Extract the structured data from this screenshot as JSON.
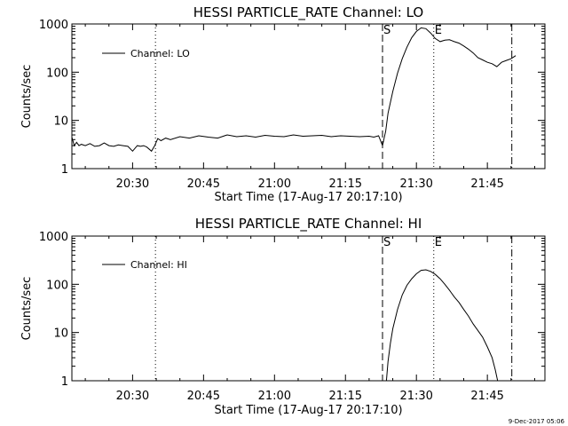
{
  "footer": "9-Dec-2017 05:06",
  "chart_data": [
    {
      "type": "line",
      "title": "HESSI PARTICLE_RATE Channel: LO",
      "xlabel": "Start Time (17-Aug-17 20:17:10)",
      "ylabel": "Counts/sec",
      "yscale": "log",
      "xlim": [
        "20:17:10",
        "21:57:10"
      ],
      "ylim": [
        1,
        1000
      ],
      "xticks": [
        "20:30",
        "20:45",
        "21:00",
        "21:15",
        "21:30",
        "21:45"
      ],
      "yticks": [
        "1",
        "10",
        "100",
        "1000"
      ],
      "legend": {
        "label": "Channel: LO",
        "position": "top-left"
      },
      "markers": [
        {
          "label": "",
          "time": "20:34:50",
          "style": "dotted"
        },
        {
          "label": "S",
          "time": "21:22:50",
          "style": "dashed"
        },
        {
          "label": "E",
          "time": "21:33:40",
          "style": "dotted"
        },
        {
          "label": "",
          "time": "21:50:10",
          "style": "dashdot"
        }
      ],
      "series": [
        {
          "name": "Channel: LO",
          "x": [
            "20:17:10",
            "20:17:40",
            "20:18:10",
            "20:18:40",
            "20:19:10",
            "20:20:00",
            "20:21:00",
            "20:22:00",
            "20:23:00",
            "20:24:00",
            "20:25:00",
            "20:26:00",
            "20:27:00",
            "20:28:00",
            "20:29:00",
            "20:30:00",
            "20:31:00",
            "20:31:40",
            "20:32:20",
            "20:33:00",
            "20:34:00",
            "20:34:40",
            "20:35:20",
            "20:36:00",
            "20:37:00",
            "20:38:00",
            "20:40:00",
            "20:42:00",
            "20:44:00",
            "20:46:00",
            "20:48:00",
            "20:50:00",
            "20:52:00",
            "20:54:00",
            "20:56:00",
            "20:58:00",
            "21:00:00",
            "21:02:00",
            "21:04:00",
            "21:06:00",
            "21:08:00",
            "21:10:00",
            "21:12:00",
            "21:14:00",
            "21:16:00",
            "21:18:00",
            "21:20:00",
            "21:21:00",
            "21:22:00",
            "21:22:50",
            "21:23:30",
            "21:24:00",
            "21:25:00",
            "21:26:00",
            "21:27:00",
            "21:28:00",
            "21:29:00",
            "21:30:00",
            "21:31:00",
            "21:32:00",
            "21:33:00",
            "21:34:00",
            "21:35:00",
            "21:36:00",
            "21:37:00",
            "21:38:00",
            "21:39:00",
            "21:40:00",
            "21:41:00",
            "21:42:00",
            "21:43:00",
            "21:44:00",
            "21:45:00",
            "21:46:00",
            "21:47:00",
            "21:48:00",
            "21:49:00",
            "21:50:00",
            "21:51:00"
          ],
          "y": [
            4.5,
            3.0,
            3.5,
            3.0,
            3.2,
            3.0,
            3.3,
            2.9,
            3.0,
            3.4,
            3.0,
            2.9,
            3.1,
            3.0,
            2.9,
            2.3,
            3.0,
            2.9,
            3.0,
            2.8,
            2.3,
            3.0,
            4.2,
            3.8,
            4.3,
            4.0,
            4.6,
            4.3,
            4.8,
            4.5,
            4.3,
            5.0,
            4.6,
            4.8,
            4.5,
            4.9,
            4.7,
            4.6,
            5.0,
            4.7,
            4.8,
            4.9,
            4.6,
            4.8,
            4.7,
            4.6,
            4.7,
            4.5,
            4.8,
            3.0,
            6,
            14,
            40,
            95,
            190,
            330,
            520,
            700,
            830,
            800,
            650,
            500,
            430,
            460,
            470,
            430,
            400,
            350,
            300,
            250,
            200,
            180,
            160,
            150,
            130,
            160,
            175,
            190,
            220
          ]
        }
      ]
    },
    {
      "type": "line",
      "title": "HESSI PARTICLE_RATE Channel: HI",
      "xlabel": "Start Time (17-Aug-17 20:17:10)",
      "ylabel": "Counts/sec",
      "yscale": "log",
      "xlim": [
        "20:17:10",
        "21:57:10"
      ],
      "ylim": [
        1,
        1000
      ],
      "xticks": [
        "20:30",
        "20:45",
        "21:00",
        "21:15",
        "21:30",
        "21:45"
      ],
      "yticks": [
        "1",
        "10",
        "100",
        "1000"
      ],
      "legend": {
        "label": "Channel: HI",
        "position": "top-left"
      },
      "markers": [
        {
          "label": "",
          "time": "20:34:50",
          "style": "dotted"
        },
        {
          "label": "S",
          "time": "21:22:50",
          "style": "dashed"
        },
        {
          "label": "E",
          "time": "21:33:40",
          "style": "dotted"
        },
        {
          "label": "",
          "time": "21:50:10",
          "style": "dashdot"
        }
      ],
      "series": [
        {
          "name": "Channel: HI",
          "x": [
            "21:23:40",
            "21:24:00",
            "21:24:30",
            "21:25:00",
            "21:26:00",
            "21:27:00",
            "21:28:00",
            "21:29:00",
            "21:30:00",
            "21:31:00",
            "21:32:00",
            "21:33:00",
            "21:34:00",
            "21:35:00",
            "21:36:00",
            "21:37:00",
            "21:38:00",
            "21:39:00",
            "21:40:00",
            "21:41:00",
            "21:42:00",
            "21:43:00",
            "21:44:00",
            "21:45:00",
            "21:46:00",
            "21:46:40",
            "21:47:10"
          ],
          "y": [
            1.0,
            2.5,
            6,
            12,
            30,
            60,
            95,
            130,
            165,
            195,
            200,
            185,
            160,
            130,
            100,
            75,
            55,
            42,
            30,
            22,
            15,
            11,
            8,
            5,
            3,
            1.7,
            1.0
          ]
        }
      ]
    }
  ]
}
